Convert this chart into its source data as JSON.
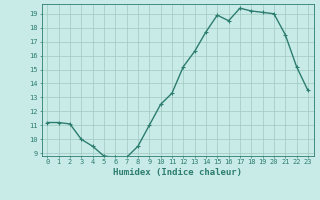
{
  "x": [
    0,
    1,
    2,
    3,
    4,
    5,
    6,
    7,
    8,
    9,
    10,
    11,
    12,
    13,
    14,
    15,
    16,
    17,
    18,
    19,
    20,
    21,
    22,
    23
  ],
  "y": [
    11.2,
    11.2,
    11.1,
    10.0,
    9.5,
    8.8,
    8.7,
    8.7,
    9.5,
    11.0,
    12.5,
    13.3,
    15.2,
    16.3,
    17.7,
    18.9,
    18.5,
    19.4,
    19.2,
    19.1,
    19.0,
    17.5,
    15.2,
    13.5
  ],
  "ylim": [
    8.8,
    19.7
  ],
  "yticks": [
    9,
    10,
    11,
    12,
    13,
    14,
    15,
    16,
    17,
    18,
    19
  ],
  "xticks": [
    0,
    1,
    2,
    3,
    4,
    5,
    6,
    7,
    8,
    9,
    10,
    11,
    12,
    13,
    14,
    15,
    16,
    17,
    18,
    19,
    20,
    21,
    22,
    23
  ],
  "xlabel": "Humidex (Indice chaleur)",
  "line_color": "#2d7d6e",
  "bg_color": "#c8ebe8",
  "grid_color": "#a0c8c0",
  "tick_color": "#2d7d6e",
  "marker": "+",
  "linewidth": 1.0,
  "markersize": 3.5,
  "tick_fontsize": 5.0,
  "xlabel_fontsize": 6.5
}
